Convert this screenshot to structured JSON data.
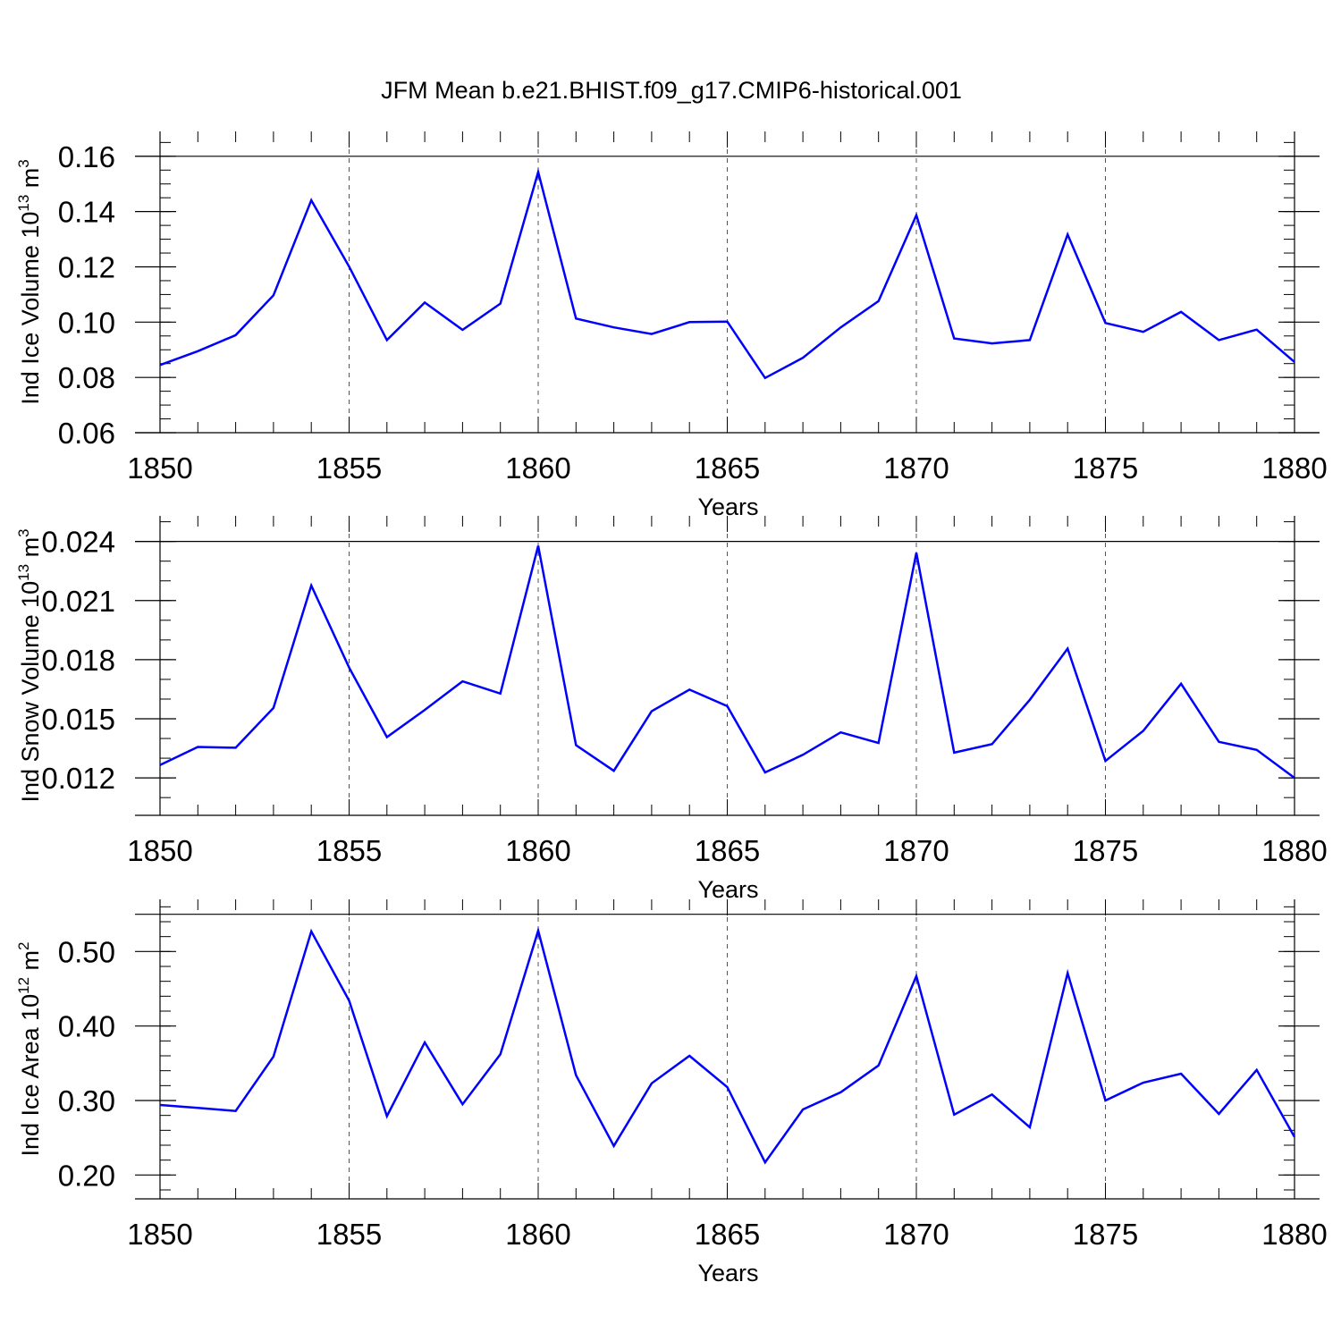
{
  "title": "JFM Mean b.e21.BHIST.f09_g17.CMIP6-historical.001",
  "line_color": "#0000ff",
  "chart_data": [
    {
      "type": "line",
      "id": "ice-volume",
      "ylabel": {
        "main": "Ind Ice Volume 10",
        "exp": "13",
        "unit": " m",
        "unit_exp": "3"
      },
      "xlabel": "Years",
      "xlim": [
        1850,
        1880
      ],
      "ylim": [
        0.06,
        0.169
      ],
      "x_ticks": [
        1850,
        1855,
        1860,
        1865,
        1870,
        1875,
        1880
      ],
      "x_tick_labels": [
        "1850",
        "1855",
        "1860",
        "1865",
        "1870",
        "1875",
        "1880"
      ],
      "y_ticks": [
        0.06,
        0.08,
        0.1,
        0.12,
        0.14,
        0.16
      ],
      "y_tick_labels": [
        "0.06",
        "0.08",
        "0.10",
        "0.12",
        "0.14",
        "0.16"
      ],
      "y_minor_step": 0.005,
      "top_line": 0.16,
      "x": [
        1850,
        1851,
        1852,
        1853,
        1854,
        1855,
        1856,
        1857,
        1858,
        1859,
        1860,
        1861,
        1862,
        1863,
        1864,
        1865,
        1866,
        1867,
        1868,
        1869,
        1870,
        1871,
        1872,
        1873,
        1874,
        1875,
        1876,
        1877,
        1878,
        1879,
        1880
      ],
      "values": [
        0.0845,
        0.0895,
        0.0953,
        0.1097,
        0.1441,
        0.1201,
        0.0935,
        0.1071,
        0.0972,
        0.1067,
        0.1543,
        0.1013,
        0.0981,
        0.0957,
        0.1,
        0.1002,
        0.0798,
        0.0871,
        0.0981,
        0.1076,
        0.1387,
        0.0941,
        0.0923,
        0.0935,
        0.1317,
        0.0997,
        0.0965,
        0.1037,
        0.0935,
        0.0973,
        0.0856
      ]
    },
    {
      "type": "line",
      "id": "snow-volume",
      "ylabel": {
        "main": "Ind Snow Volume 10",
        "exp": "13",
        "unit": " m",
        "unit_exp": "3"
      },
      "xlabel": "Years",
      "xlim": [
        1850,
        1880
      ],
      "ylim": [
        0.0101,
        0.0253
      ],
      "x_ticks": [
        1850,
        1855,
        1860,
        1865,
        1870,
        1875,
        1880
      ],
      "x_tick_labels": [
        "1850",
        "1855",
        "1860",
        "1865",
        "1870",
        "1875",
        "1880"
      ],
      "y_ticks": [
        0.012,
        0.015,
        0.018,
        0.021,
        0.024
      ],
      "y_tick_labels": [
        "0.012",
        "0.015",
        "0.018",
        "0.021",
        "0.024"
      ],
      "y_minor_step": 0.001,
      "top_line": 0.024,
      "x": [
        1850,
        1851,
        1852,
        1853,
        1854,
        1855,
        1856,
        1857,
        1858,
        1859,
        1860,
        1861,
        1862,
        1863,
        1864,
        1865,
        1866,
        1867,
        1868,
        1869,
        1870,
        1871,
        1872,
        1873,
        1874,
        1875,
        1876,
        1877,
        1878,
        1879,
        1880
      ],
      "values": [
        0.01265,
        0.01357,
        0.01353,
        0.01555,
        0.02176,
        0.0176,
        0.01407,
        0.01545,
        0.0169,
        0.01628,
        0.02378,
        0.01366,
        0.01236,
        0.01538,
        0.01648,
        0.01564,
        0.01228,
        0.01317,
        0.01431,
        0.01377,
        0.02342,
        0.01328,
        0.01371,
        0.01596,
        0.01856,
        0.01286,
        0.01439,
        0.01678,
        0.01383,
        0.01342,
        0.012
      ]
    },
    {
      "type": "line",
      "id": "ice-area",
      "ylabel": {
        "main": "Ind Ice Area 10",
        "exp": "12",
        "unit": " m",
        "unit_exp": "2"
      },
      "xlabel": "Years",
      "xlim": [
        1850,
        1880
      ],
      "ylim": [
        0.168,
        0.57
      ],
      "x_ticks": [
        1850,
        1855,
        1860,
        1865,
        1870,
        1875,
        1880
      ],
      "x_tick_labels": [
        "1850",
        "1855",
        "1860",
        "1865",
        "1870",
        "1875",
        "1880"
      ],
      "y_ticks": [
        0.2,
        0.3,
        0.4,
        0.5
      ],
      "y_tick_labels": [
        "0.20",
        "0.30",
        "0.40",
        "0.50"
      ],
      "y_minor_step": 0.02,
      "top_line": 0.55,
      "x": [
        1850,
        1851,
        1852,
        1853,
        1854,
        1855,
        1856,
        1857,
        1858,
        1859,
        1860,
        1861,
        1862,
        1863,
        1864,
        1865,
        1866,
        1867,
        1868,
        1869,
        1870,
        1871,
        1872,
        1873,
        1874,
        1875,
        1876,
        1877,
        1878,
        1879,
        1880
      ],
      "values": [
        0.294,
        0.29,
        0.286,
        0.359,
        0.527,
        0.434,
        0.279,
        0.378,
        0.295,
        0.362,
        0.528,
        0.334,
        0.239,
        0.323,
        0.36,
        0.318,
        0.217,
        0.288,
        0.311,
        0.347,
        0.467,
        0.281,
        0.308,
        0.264,
        0.471,
        0.3,
        0.324,
        0.336,
        0.282,
        0.341,
        0.251
      ]
    }
  ]
}
